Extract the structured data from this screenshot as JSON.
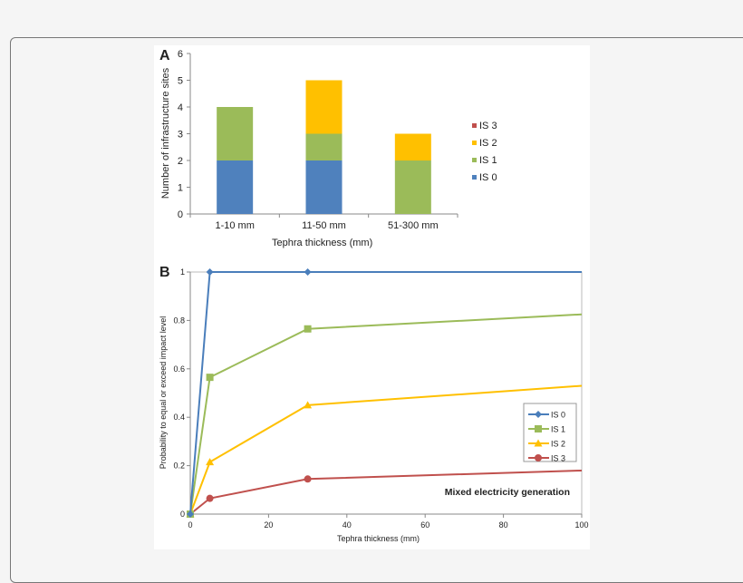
{
  "chart_data": [
    {
      "type": "bar",
      "stacked": true,
      "panel_label": "A",
      "categories": [
        "1-10 mm",
        "11-50 mm",
        "51-300 mm"
      ],
      "series": [
        {
          "name": "IS 0",
          "values": [
            2,
            2,
            0
          ],
          "color": "#4f81bd"
        },
        {
          "name": "IS 1",
          "values": [
            2,
            1,
            2
          ],
          "color": "#9bbb59"
        },
        {
          "name": "IS 2",
          "values": [
            0,
            2,
            1
          ],
          "color": "#ffc000"
        },
        {
          "name": "IS 3",
          "values": [
            0,
            0,
            0
          ],
          "color": "#c0504d"
        }
      ],
      "legend_order": [
        "IS 3",
        "IS 2",
        "IS 1",
        "IS 0"
      ],
      "xlabel": "Tephra thickness (mm)",
      "ylabel": "Number of infrastructure sites",
      "ylim": [
        0,
        6
      ],
      "yticks": [
        0,
        1,
        2,
        3,
        4,
        5,
        6
      ],
      "grid": false,
      "legend_placement": "right"
    },
    {
      "type": "line",
      "panel_label": "B",
      "x": [
        0,
        5,
        30,
        100
      ],
      "series": [
        {
          "name": "IS 0",
          "values": [
            0,
            1,
            1,
            1
          ],
          "color": "#4a7ebb",
          "marker": "diamond"
        },
        {
          "name": "IS 1",
          "values": [
            0,
            0.565,
            0.765,
            0.825
          ],
          "color": "#9bbb59",
          "marker": "square"
        },
        {
          "name": "IS 2",
          "values": [
            0,
            0.215,
            0.45,
            0.53
          ],
          "color": "#ffc000",
          "marker": "triangle"
        },
        {
          "name": "IS 3",
          "values": [
            0,
            0.065,
            0.145,
            0.18
          ],
          "color": "#c0504d",
          "marker": "circle"
        }
      ],
      "xlabel": "Tephra thickness (mm)",
      "ylabel": "Probability to equal or exceed impact level",
      "annotation": "Mixed electricity generation",
      "xlim": [
        0,
        100
      ],
      "ylim": [
        0,
        1
      ],
      "xticks": [
        0,
        20,
        40,
        60,
        80,
        100
      ],
      "yticks": [
        "0",
        "0.2",
        "0.4",
        "0.6",
        "0.8",
        "1"
      ],
      "grid": false,
      "legend_placement": "right"
    }
  ]
}
